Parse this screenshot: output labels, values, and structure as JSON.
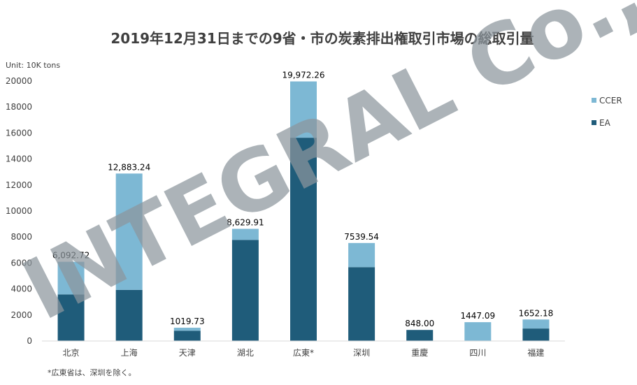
{
  "chart_data": {
    "type": "bar",
    "stacked": true,
    "title": "2019年12月31日までの9省・市の炭素排出権取引市場の総取引量",
    "unit_label": "Unit: 10K tons",
    "categories": [
      "北京",
      "上海",
      "天津",
      "湖北",
      "広東*",
      "深圳",
      "重慶",
      "四川",
      "福建"
    ],
    "series": [
      {
        "name": "EA",
        "color": "#1f5c7a",
        "values": [
          3580,
          3930,
          790,
          7780,
          15640,
          5680,
          848,
          0,
          960
        ]
      },
      {
        "name": "CCER",
        "color": "#7db8d4",
        "values": [
          2512.72,
          8953.24,
          229.73,
          849.91,
          4332.26,
          1859.54,
          0,
          1447.09,
          692.18
        ]
      }
    ],
    "totals_labels": [
      "6,092.72",
      "12,883.24",
      "1019.73",
      "8,629.91",
      "19,972.26",
      "7539.54",
      "848.00",
      "1447.09",
      "1652.18"
    ],
    "totals": [
      6092.72,
      12883.24,
      1019.73,
      8629.91,
      19972.26,
      7539.54,
      848.0,
      1447.09,
      1652.18
    ],
    "ylim": [
      0,
      20000
    ],
    "yticks": [
      0,
      2000,
      4000,
      6000,
      8000,
      10000,
      12000,
      14000,
      16000,
      18000,
      20000
    ],
    "legend": [
      "CCER",
      "EA"
    ],
    "legend_position": "right",
    "grid": false,
    "footnote": "*広東省は、深圳を除く。"
  },
  "watermark": "INTEGRAL Co., Ltd"
}
